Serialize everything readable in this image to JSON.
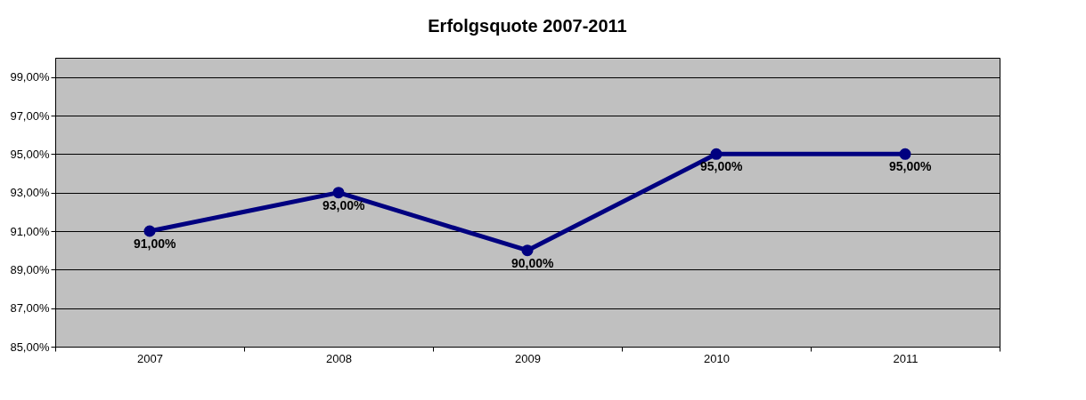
{
  "chart_data": {
    "type": "line",
    "title": "Erfolgsquote 2007-2011",
    "categories": [
      "2007",
      "2008",
      "2009",
      "2010",
      "2011"
    ],
    "series": [
      {
        "color": "#000080",
        "values": [
          91,
          93,
          90,
          95,
          95
        ],
        "value_labels": [
          "91,00%",
          "93,00%",
          "90,00%",
          "95,00%",
          "95,00%"
        ]
      }
    ],
    "ylim": [
      85,
      100
    ],
    "yticks": [
      {
        "value": 85,
        "label": "85,00%"
      },
      {
        "value": 87,
        "label": "87,00%"
      },
      {
        "value": 89,
        "label": "89,00%"
      },
      {
        "value": 91,
        "label": "91,00%"
      },
      {
        "value": 93,
        "label": "93,00%"
      },
      {
        "value": 95,
        "label": "95,00%"
      },
      {
        "value": 97,
        "label": "97,00%"
      },
      {
        "value": 99,
        "label": "99,00%"
      }
    ],
    "grid": "y",
    "marker": "circle",
    "line_style": "solid"
  }
}
